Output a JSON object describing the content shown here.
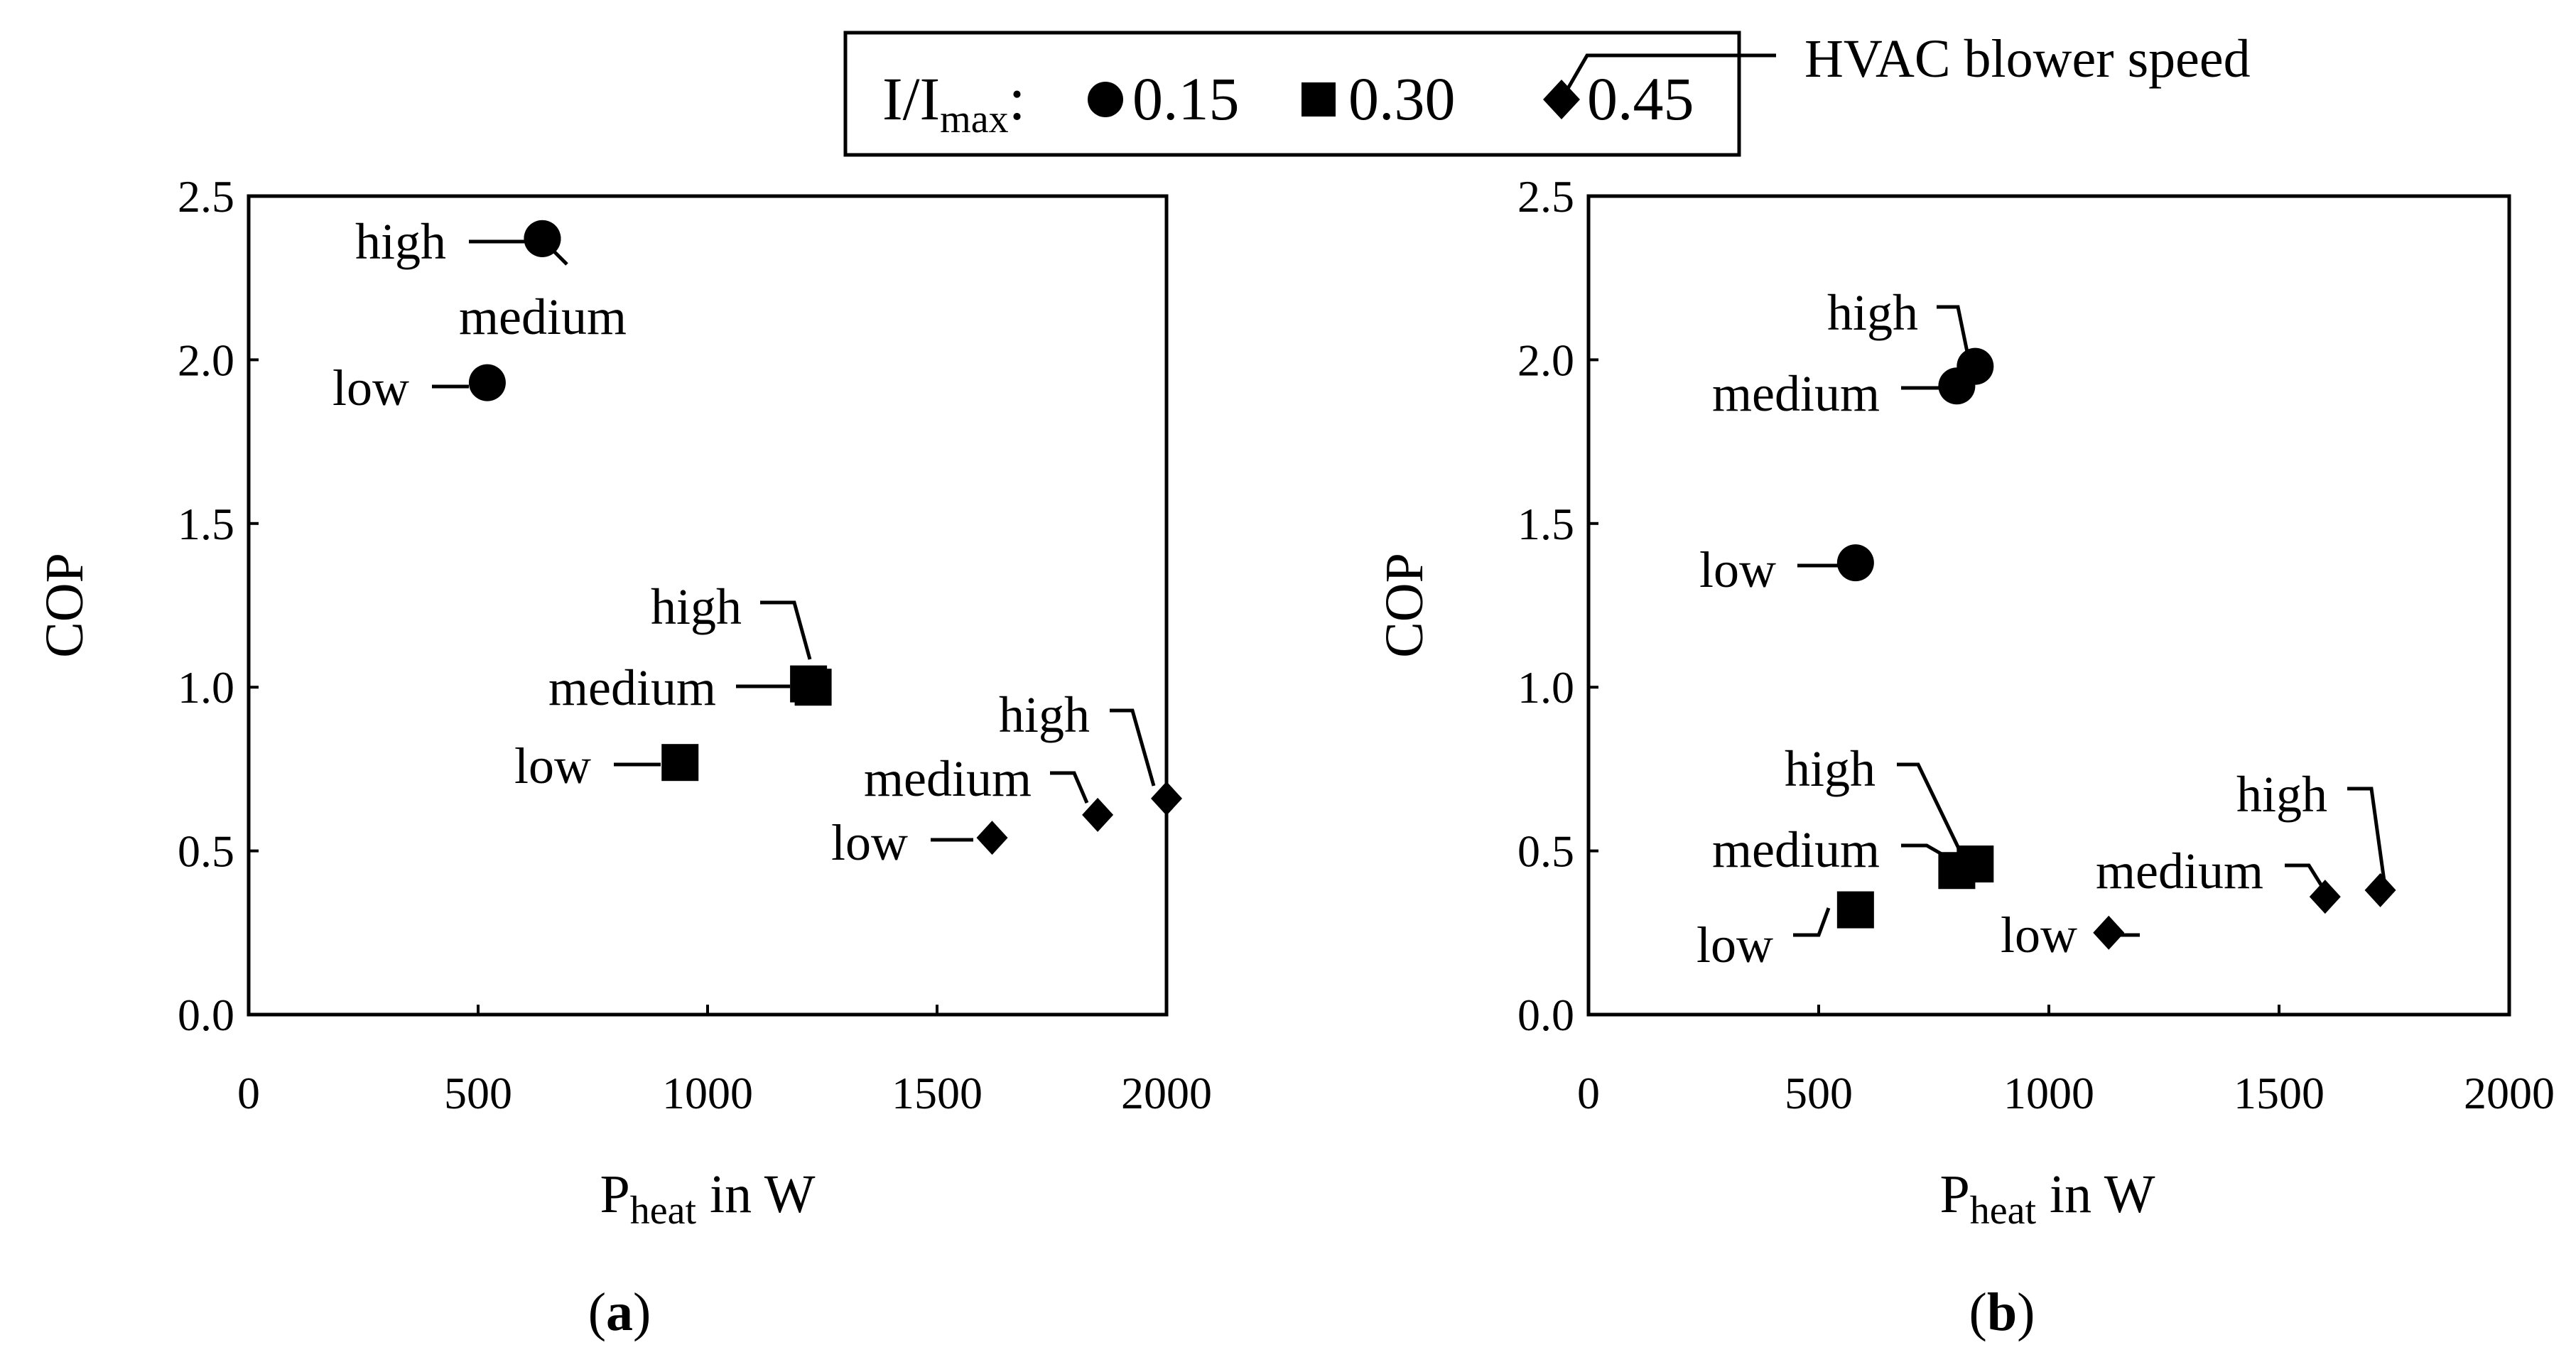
{
  "legend": {
    "label_main": "I/I",
    "label_sub": "max",
    "label_colon": ":",
    "entries": [
      {
        "marker": "circle",
        "label": "0.15"
      },
      {
        "marker": "square",
        "label": "0.30"
      },
      {
        "marker": "diamond",
        "label": "0.45"
      }
    ],
    "callout": "HVAC blower speed"
  },
  "chart_data": [
    {
      "type": "scatter",
      "panel_label": "(a)",
      "panel_letter": "a",
      "title": "",
      "xlabel": "P",
      "xlabel_sub": "heat",
      "xlabel_suffix": " in W",
      "ylabel": "COP",
      "xlim": [
        0,
        2000
      ],
      "ylim": [
        0.0,
        2.5
      ],
      "xticks": [
        "0",
        "500",
        "1000",
        "1500",
        "2000"
      ],
      "yticks": [
        "0.0",
        "0.5",
        "1.0",
        "1.5",
        "2.0",
        "2.5"
      ],
      "series": [
        {
          "name": "0.15",
          "marker": "circle",
          "points": [
            {
              "x": 520,
              "y": 1.93,
              "label": "low"
            },
            {
              "x": 640,
              "y": 2.37,
              "label": "medium"
            },
            {
              "x": 640,
              "y": 2.37,
              "label": "high"
            }
          ]
        },
        {
          "name": "0.30",
          "marker": "square",
          "points": [
            {
              "x": 940,
              "y": 0.77,
              "label": "low"
            },
            {
              "x": 1220,
              "y": 1.01,
              "label": "medium"
            },
            {
              "x": 1230,
              "y": 1.0,
              "label": "high"
            }
          ]
        },
        {
          "name": "0.45",
          "marker": "diamond",
          "points": [
            {
              "x": 1620,
              "y": 0.54,
              "label": "low"
            },
            {
              "x": 1850,
              "y": 0.61,
              "label": "medium"
            },
            {
              "x": 2000,
              "y": 0.66,
              "label": "high"
            }
          ]
        }
      ]
    },
    {
      "type": "scatter",
      "panel_label": "(b)",
      "panel_letter": "b",
      "title": "",
      "xlabel": "P",
      "xlabel_sub": "heat",
      "xlabel_suffix": " in W",
      "ylabel": "COP",
      "xlim": [
        0,
        2000
      ],
      "ylim": [
        0.0,
        2.5
      ],
      "xticks": [
        "0",
        "500",
        "1000",
        "1500",
        "2000"
      ],
      "yticks": [
        "0.0",
        "0.5",
        "1.0",
        "1.5",
        "2.0",
        "2.5"
      ],
      "series": [
        {
          "name": "0.15",
          "marker": "circle",
          "points": [
            {
              "x": 580,
              "y": 1.38,
              "label": "low"
            },
            {
              "x": 800,
              "y": 1.92,
              "label": "medium"
            },
            {
              "x": 840,
              "y": 1.98,
              "label": "high"
            }
          ]
        },
        {
          "name": "0.30",
          "marker": "square",
          "points": [
            {
              "x": 580,
              "y": 0.32,
              "label": "low"
            },
            {
              "x": 800,
              "y": 0.44,
              "label": "medium"
            },
            {
              "x": 840,
              "y": 0.46,
              "label": "high"
            }
          ]
        },
        {
          "name": "0.45",
          "marker": "diamond",
          "points": [
            {
              "x": 1130,
              "y": 0.25,
              "label": "low"
            },
            {
              "x": 1600,
              "y": 0.36,
              "label": "medium"
            },
            {
              "x": 1720,
              "y": 0.38,
              "label": "high"
            }
          ]
        }
      ]
    }
  ]
}
